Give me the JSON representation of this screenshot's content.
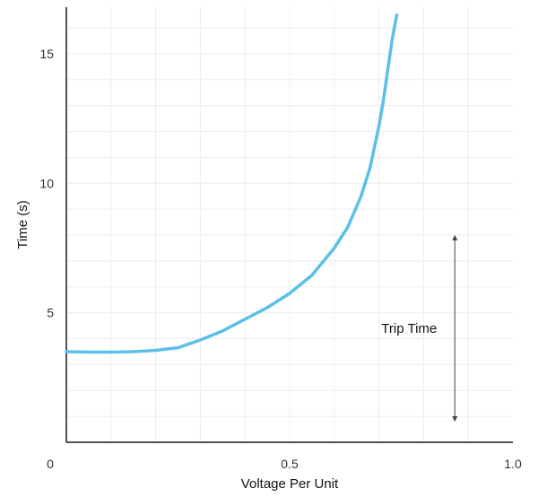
{
  "chart_data": {
    "type": "line",
    "xlabel": "Voltage Per Unit",
    "ylabel": "Time (s)",
    "xlim": [
      0,
      1.0
    ],
    "ylim": [
      0,
      16.8
    ],
    "x_ticks": [
      {
        "value": 0,
        "label": "0"
      },
      {
        "value": 0.5,
        "label": "0.5"
      },
      {
        "value": 1.0,
        "label": "1.0"
      }
    ],
    "y_ticks": [
      {
        "value": 5,
        "label": "5"
      },
      {
        "value": 10,
        "label": "10"
      },
      {
        "value": 15,
        "label": "15"
      }
    ],
    "grid": true,
    "series": [
      {
        "color": "#5bc0e6",
        "x": [
          0.0,
          0.05,
          0.1,
          0.15,
          0.2,
          0.25,
          0.3,
          0.35,
          0.4,
          0.45,
          0.5,
          0.55,
          0.6,
          0.63,
          0.66,
          0.68,
          0.7,
          0.71,
          0.72,
          0.73,
          0.74
        ],
        "y": [
          3.5,
          3.48,
          3.48,
          3.5,
          3.55,
          3.65,
          3.95,
          4.3,
          4.75,
          5.2,
          5.75,
          6.45,
          7.5,
          8.3,
          9.5,
          10.6,
          12.2,
          13.2,
          14.4,
          15.6,
          16.5
        ]
      }
    ],
    "annotations": [
      {
        "type": "double-arrow",
        "label": "Trip Time",
        "x": 0.87,
        "y_from": 7.9,
        "y_to": 0.9
      }
    ]
  },
  "colors": {
    "curve": "#5bc0e6",
    "axis": "#1a1a1a",
    "grid": "#ececec",
    "arrow": "#444444"
  }
}
